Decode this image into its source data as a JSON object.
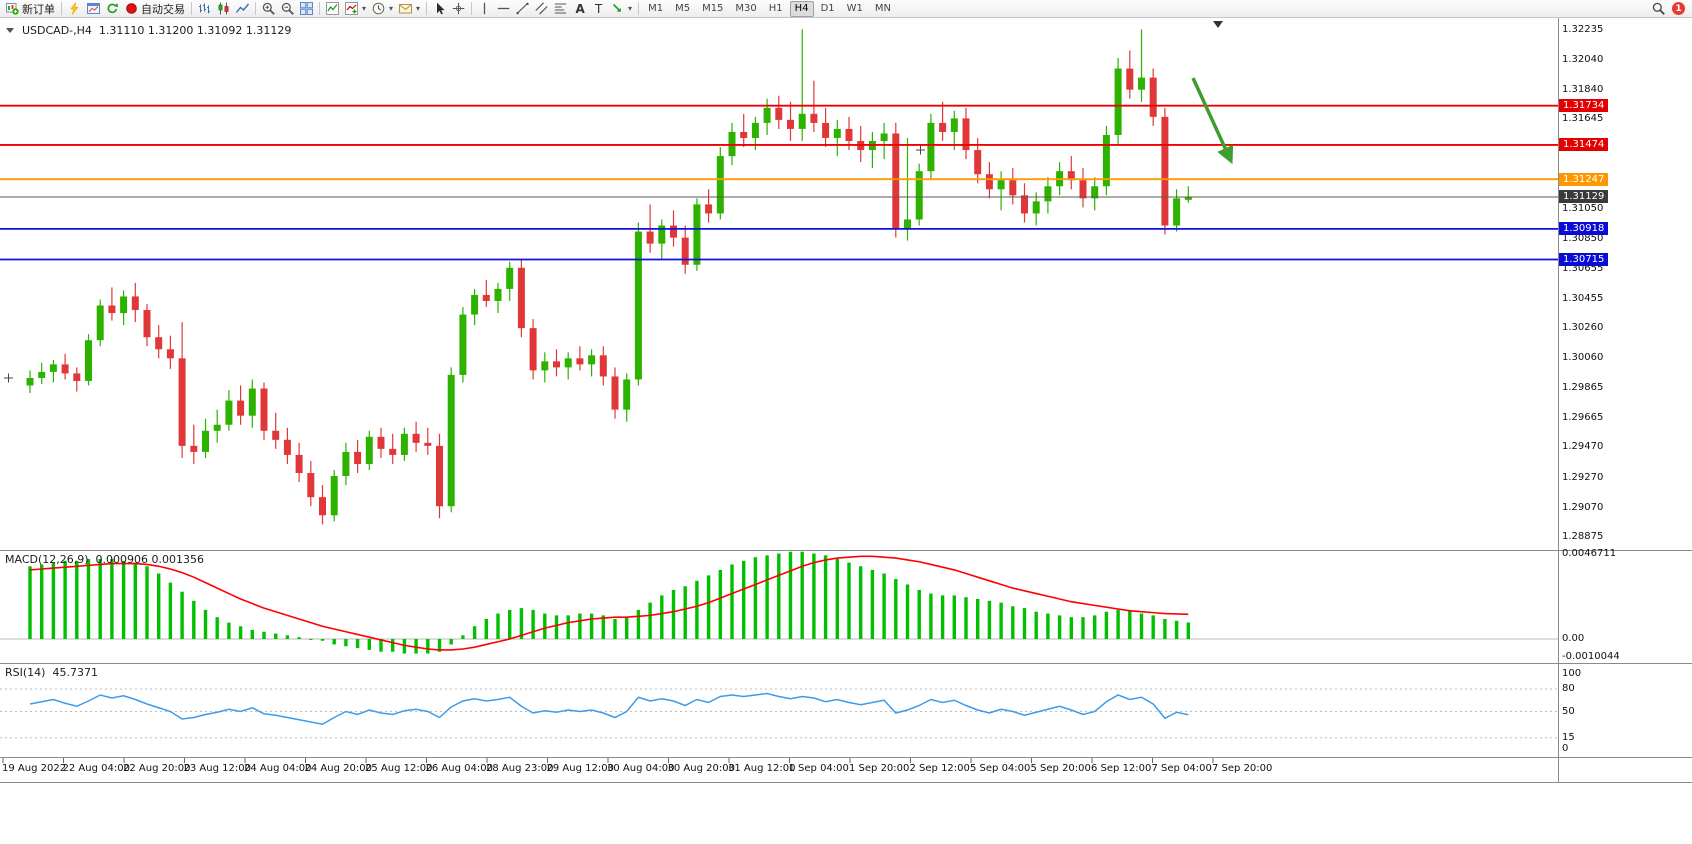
{
  "toolbar": {
    "new_order_label": "新订单",
    "autotrading_label": "自动交易",
    "timeframes": [
      "M1",
      "M5",
      "M15",
      "M30",
      "H1",
      "H4",
      "D1",
      "W1",
      "MN"
    ],
    "active_timeframe": "H4",
    "notification_count": "1",
    "items": [
      {
        "name": "new-order-button",
        "icon": "new-order-icon",
        "label_key": "new_order_label"
      },
      {
        "sep": true
      },
      {
        "name": "quick-chart-button",
        "icon": "lightning-icon"
      },
      {
        "name": "new-chart-button",
        "icon": "chart-window-icon"
      },
      {
        "name": "refresh-button",
        "icon": "refresh-icon"
      },
      {
        "name": "autotrading-button",
        "icon": "autotrading-icon",
        "label_key": "autotrading_label"
      },
      {
        "sep": true
      },
      {
        "name": "bar-chart-button",
        "icon": "bars-chart-icon"
      },
      {
        "name": "candlestick-chart-button",
        "icon": "candles-chart-icon"
      },
      {
        "name": "line-chart-button",
        "icon": "line-chart-icon"
      },
      {
        "sep": true
      },
      {
        "name": "zoom-in-button",
        "icon": "zoom-in-icon"
      },
      {
        "name": "zoom-out-button",
        "icon": "zoom-out-icon"
      },
      {
        "name": "tile-windows-button",
        "icon": "tile-windows-icon"
      },
      {
        "sep": true
      },
      {
        "name": "indicators-button",
        "icon": "indicator-list-icon"
      },
      {
        "name": "add-indicator-button",
        "icon": "indicator-add-icon",
        "dropdown": true
      },
      {
        "name": "periods-button",
        "icon": "clock-icon",
        "dropdown": true
      },
      {
        "name": "templates-button",
        "icon": "mail-icon",
        "dropdown": true
      },
      {
        "sep": true
      },
      {
        "name": "cursor-tool-button",
        "icon": "cursor-icon"
      },
      {
        "name": "crosshair-tool-button",
        "icon": "crosshair-icon"
      },
      {
        "sep": true
      },
      {
        "name": "vertical-line-tool-button",
        "icon": "vline-icon"
      },
      {
        "name": "horizontal-line-tool-button",
        "icon": "hline-icon"
      },
      {
        "name": "trendline-tool-button",
        "icon": "trendline-icon"
      },
      {
        "name": "channel-tool-button",
        "icon": "channel-icon"
      },
      {
        "name": "fibonacci-tool-button",
        "icon": "fibo-icon"
      },
      {
        "name": "text-tool-button",
        "icon": "text-icon"
      },
      {
        "name": "label-tool-button",
        "icon": "label-icon"
      },
      {
        "name": "arrows-tool-button",
        "icon": "arrows-icon",
        "dropdown": true
      },
      {
        "sep": true
      },
      {
        "tf_group": true
      },
      {
        "spacer": true
      },
      {
        "name": "search-button",
        "icon": "search-icon"
      },
      {
        "badge": true
      }
    ]
  },
  "chart": {
    "header": {
      "symbol": "USDCAD-,H4",
      "ohlc": "1.31110 1.31200 1.31092 1.31129"
    },
    "price_axis_labels": [
      "1.32235",
      "1.32040",
      "1.31840",
      "1.31645",
      "1.31445",
      "1.31245",
      "1.31050",
      "1.30850",
      "1.30655",
      "1.30455",
      "1.30260",
      "1.30060",
      "1.29865",
      "1.29665",
      "1.29470",
      "1.29270",
      "1.29070",
      "1.28875"
    ],
    "time_axis_labels": [
      "19 Aug 2022",
      "22 Aug 04:00",
      "22 Aug 20:00",
      "23 Aug 12:00",
      "24 Aug 04:00",
      "24 Aug 20:00",
      "25 Aug 12:00",
      "26 Aug 04:00",
      "28 Aug 23:00",
      "29 Aug 12:00",
      "30 Aug 04:00",
      "30 Aug 20:00",
      "31 Aug 12:00",
      "1 Sep 04:00",
      "1 Sep 20:00",
      "2 Sep 12:00",
      "5 Sep 04:00",
      "5 Sep 20:00",
      "6 Sep 12:00",
      "7 Sep 04:00",
      "7 Sep 20:00"
    ]
  },
  "macd": {
    "label": "MACD(12,26,9)",
    "values": "0.000906 0.001356",
    "axis_labels": [
      "0.0046711",
      "0.00",
      "-0.0010044"
    ]
  },
  "rsi": {
    "label": "RSI(14)",
    "value": "45.7371",
    "axis_labels": [
      "100",
      "80",
      "50",
      "15",
      "0"
    ],
    "levels": [
      80,
      50,
      15
    ]
  },
  "colors": {
    "bull": "#2db200",
    "bear": "#e03838",
    "hline_red": "#f20000",
    "hline_orange": "#ff9b00",
    "hline_blue": "#1010e0",
    "price_line": "#5a5a5a",
    "tag_red": "#e30000",
    "tag_orange": "#ff9800",
    "tag_blue": "#0b0bd6",
    "tag_dark": "#3a3a3a",
    "macd_hist": "#00c000",
    "macd_signal": "#ff0000",
    "rsi_line": "#3d9be9",
    "arrow": "#3f9d2f"
  },
  "chart_data": {
    "type": "candlestick",
    "symbol": "USDCAD",
    "timeframe": "H4",
    "price_range": [
      1.28875,
      1.32235
    ],
    "candles": [
      [
        1.2988,
        1.2998,
        1.2983,
        1.2993
      ],
      [
        1.2993,
        1.3003,
        1.2989,
        1.2997
      ],
      [
        1.2997,
        1.3005,
        1.299,
        1.3002
      ],
      [
        1.3002,
        1.3009,
        1.2992,
        1.2996
      ],
      [
        1.2996,
        1.3,
        1.2984,
        1.2991
      ],
      [
        1.2991,
        1.3022,
        1.2988,
        1.3018
      ],
      [
        1.3018,
        1.3045,
        1.3014,
        1.3041
      ],
      [
        1.3041,
        1.3053,
        1.3031,
        1.3036
      ],
      [
        1.3036,
        1.3051,
        1.3028,
        1.3047
      ],
      [
        1.3047,
        1.3056,
        1.303,
        1.3038
      ],
      [
        1.3038,
        1.3042,
        1.3014,
        1.302
      ],
      [
        1.302,
        1.3028,
        1.3006,
        1.3012
      ],
      [
        1.3012,
        1.3021,
        1.2999,
        1.3006
      ],
      [
        1.3006,
        1.303,
        1.294,
        1.2948
      ],
      [
        1.2948,
        1.2962,
        1.2936,
        1.2944
      ],
      [
        1.2944,
        1.2966,
        1.294,
        1.2958
      ],
      [
        1.2958,
        1.2972,
        1.295,
        1.2962
      ],
      [
        1.2962,
        1.2985,
        1.2958,
        1.2978
      ],
      [
        1.2978,
        1.2988,
        1.2962,
        1.2968
      ],
      [
        1.2968,
        1.2992,
        1.296,
        1.2986
      ],
      [
        1.2986,
        1.299,
        1.2952,
        1.2958
      ],
      [
        1.2958,
        1.297,
        1.2946,
        1.2952
      ],
      [
        1.2952,
        1.296,
        1.2936,
        1.2942
      ],
      [
        1.2942,
        1.295,
        1.2924,
        1.293
      ],
      [
        1.293,
        1.2938,
        1.2908,
        1.2914
      ],
      [
        1.2914,
        1.2922,
        1.2896,
        1.2902
      ],
      [
        1.2902,
        1.2932,
        1.2898,
        1.2928
      ],
      [
        1.2928,
        1.295,
        1.2922,
        1.2944
      ],
      [
        1.2944,
        1.2952,
        1.293,
        1.2936
      ],
      [
        1.2936,
        1.2958,
        1.2932,
        1.2954
      ],
      [
        1.2954,
        1.296,
        1.294,
        1.2946
      ],
      [
        1.2946,
        1.2956,
        1.2936,
        1.2942
      ],
      [
        1.2942,
        1.296,
        1.2938,
        1.2956
      ],
      [
        1.2956,
        1.2964,
        1.2944,
        1.295
      ],
      [
        1.295,
        1.296,
        1.2942,
        1.2948
      ],
      [
        1.2948,
        1.2956,
        1.29,
        1.2908
      ],
      [
        1.2908,
        1.3,
        1.2904,
        1.2995
      ],
      [
        1.2995,
        1.304,
        1.299,
        1.3035
      ],
      [
        1.3035,
        1.3052,
        1.3028,
        1.3048
      ],
      [
        1.3048,
        1.3058,
        1.304,
        1.3044
      ],
      [
        1.3044,
        1.3056,
        1.3036,
        1.3052
      ],
      [
        1.3052,
        1.307,
        1.3044,
        1.3066
      ],
      [
        1.3066,
        1.3072,
        1.302,
        1.3026
      ],
      [
        1.3026,
        1.3032,
        1.2992,
        1.2998
      ],
      [
        1.2998,
        1.301,
        1.299,
        1.3004
      ],
      [
        1.3004,
        1.3012,
        1.2994,
        1.3
      ],
      [
        1.3,
        1.301,
        1.2992,
        1.3006
      ],
      [
        1.3006,
        1.3014,
        1.2998,
        1.3002
      ],
      [
        1.3002,
        1.3012,
        1.2994,
        1.3008
      ],
      [
        1.3008,
        1.3014,
        1.2988,
        1.2994
      ],
      [
        1.2994,
        1.3,
        1.2966,
        1.2972
      ],
      [
        1.2972,
        1.2996,
        1.2964,
        1.2992
      ],
      [
        1.2992,
        1.3096,
        1.2988,
        1.309
      ],
      [
        1.309,
        1.3108,
        1.3076,
        1.3082
      ],
      [
        1.3082,
        1.3098,
        1.3072,
        1.3094
      ],
      [
        1.3094,
        1.3104,
        1.308,
        1.3086
      ],
      [
        1.3086,
        1.3094,
        1.3062,
        1.3068
      ],
      [
        1.3068,
        1.3112,
        1.3064,
        1.3108
      ],
      [
        1.3108,
        1.3118,
        1.3096,
        1.3102
      ],
      [
        1.3102,
        1.3146,
        1.3098,
        1.314
      ],
      [
        1.314,
        1.3162,
        1.3134,
        1.3156
      ],
      [
        1.3156,
        1.3168,
        1.3146,
        1.3152
      ],
      [
        1.3152,
        1.3166,
        1.3144,
        1.3162
      ],
      [
        1.3162,
        1.3178,
        1.3154,
        1.3172
      ],
      [
        1.3172,
        1.318,
        1.3158,
        1.3164
      ],
      [
        1.3164,
        1.3176,
        1.315,
        1.3158
      ],
      [
        1.3158,
        1.3224,
        1.315,
        1.3168
      ],
      [
        1.3168,
        1.319,
        1.3156,
        1.3162
      ],
      [
        1.3162,
        1.3172,
        1.3146,
        1.3152
      ],
      [
        1.3152,
        1.3164,
        1.314,
        1.3158
      ],
      [
        1.3158,
        1.3166,
        1.3144,
        1.315
      ],
      [
        1.315,
        1.316,
        1.3136,
        1.3144
      ],
      [
        1.3144,
        1.3156,
        1.3132,
        1.315
      ],
      [
        1.315,
        1.3162,
        1.3138,
        1.3155
      ],
      [
        1.3155,
        1.3162,
        1.3086,
        1.3092
      ],
      [
        1.3092,
        1.3152,
        1.3084,
        1.3098
      ],
      [
        1.3098,
        1.3135,
        1.3094,
        1.313
      ],
      [
        1.313,
        1.3168,
        1.3124,
        1.3162
      ],
      [
        1.3162,
        1.3176,
        1.315,
        1.3156
      ],
      [
        1.3156,
        1.317,
        1.3144,
        1.3165
      ],
      [
        1.3165,
        1.3172,
        1.3138,
        1.3144
      ],
      [
        1.3144,
        1.3152,
        1.3122,
        1.3128
      ],
      [
        1.3128,
        1.3136,
        1.3112,
        1.3118
      ],
      [
        1.3118,
        1.313,
        1.3104,
        1.3124
      ],
      [
        1.3124,
        1.3132,
        1.3108,
        1.3114
      ],
      [
        1.3114,
        1.3122,
        1.3096,
        1.3102
      ],
      [
        1.3102,
        1.3116,
        1.3094,
        1.311
      ],
      [
        1.311,
        1.3126,
        1.3102,
        1.312
      ],
      [
        1.312,
        1.3136,
        1.3114,
        1.313
      ],
      [
        1.313,
        1.314,
        1.3118,
        1.3124
      ],
      [
        1.3124,
        1.3132,
        1.3106,
        1.3112
      ],
      [
        1.3112,
        1.3126,
        1.3104,
        1.312
      ],
      [
        1.312,
        1.316,
        1.3114,
        1.3154
      ],
      [
        1.3154,
        1.3205,
        1.3148,
        1.3198
      ],
      [
        1.3198,
        1.321,
        1.3178,
        1.3184
      ],
      [
        1.3184,
        1.3224,
        1.3176,
        1.3192
      ],
      [
        1.3192,
        1.3198,
        1.316,
        1.3166
      ],
      [
        1.3166,
        1.3172,
        1.3088,
        1.3094
      ],
      [
        1.3094,
        1.3118,
        1.309,
        1.3112
      ],
      [
        1.3111,
        1.312,
        1.31092,
        1.31129
      ]
    ],
    "hlines": [
      {
        "price": 1.31734,
        "color": "red",
        "label": "1.31734"
      },
      {
        "price": 1.31474,
        "color": "red",
        "label": "1.31474"
      },
      {
        "price": 1.31247,
        "color": "orange",
        "label": "1.31247"
      },
      {
        "price": 1.31129,
        "color": "dark",
        "label": "1.31129",
        "current": true
      },
      {
        "price": 1.30918,
        "color": "blue",
        "label": "1.30918"
      },
      {
        "price": 1.30715,
        "color": "blue",
        "label": "1.30715"
      }
    ],
    "macd": {
      "params": "12,26,9",
      "current_values": [
        0.000906,
        0.001356
      ],
      "histogram_x1e4": [
        40,
        41,
        42,
        43,
        43,
        44,
        44,
        44,
        43,
        42,
        40,
        36,
        31,
        26,
        21,
        16,
        12,
        9,
        7,
        5,
        4,
        3,
        2,
        1,
        0,
        -1,
        -3,
        -4,
        -5,
        -6,
        -7,
        -7,
        -8,
        -8,
        -8,
        -7,
        -3,
        2,
        7,
        11,
        14,
        16,
        17,
        16,
        14,
        13,
        13,
        14,
        14,
        13,
        11,
        12,
        16,
        20,
        24,
        27,
        29,
        32,
        35,
        38,
        41,
        43,
        45,
        46,
        47,
        48,
        48,
        47,
        46,
        44,
        42,
        40,
        38,
        36,
        33,
        30,
        27,
        25,
        24,
        24,
        23,
        22,
        21,
        20,
        18,
        17,
        15,
        14,
        13,
        12,
        12,
        13,
        15,
        16,
        16,
        14,
        13,
        11,
        10,
        9.06
      ],
      "signal_x1e4": [
        38,
        38.5,
        39,
        39.5,
        40,
        40.5,
        41,
        41.5,
        41.5,
        41.5,
        41,
        40,
        38.5,
        36.5,
        34,
        31,
        28,
        25,
        22,
        19.5,
        17,
        15,
        13,
        11,
        9,
        7,
        5.5,
        4,
        2.5,
        1,
        -0.5,
        -2,
        -3.5,
        -4.5,
        -5.5,
        -6,
        -6,
        -5.5,
        -4.5,
        -3,
        -1.5,
        0,
        2,
        4,
        6,
        7.5,
        9,
        10,
        11,
        11.5,
        12,
        12,
        12.5,
        13,
        14,
        15,
        16.5,
        18,
        20,
        22.5,
        25,
        27.5,
        30,
        32.5,
        35,
        37.5,
        40,
        42,
        43.5,
        44.5,
        45,
        45.5,
        45.5,
        45,
        44.5,
        43.5,
        42.5,
        41,
        39.5,
        38,
        36,
        34,
        32,
        30,
        28,
        26.5,
        25,
        23.5,
        22,
        20.5,
        19.5,
        18.5,
        17.5,
        16.5,
        15.5,
        15,
        14.5,
        14,
        13.8,
        13.56
      ]
    },
    "rsi": {
      "period": 14,
      "current_value": 45.7371,
      "values": [
        60,
        63,
        66,
        61,
        57,
        64,
        72,
        68,
        71,
        66,
        60,
        55,
        50,
        40,
        42,
        46,
        49,
        53,
        50,
        55,
        47,
        45,
        42,
        39,
        36,
        33,
        42,
        50,
        46,
        52,
        48,
        46,
        51,
        53,
        50,
        42,
        56,
        64,
        67,
        64,
        66,
        69,
        57,
        48,
        51,
        49,
        52,
        50,
        52,
        48,
        42,
        50,
        69,
        64,
        67,
        64,
        58,
        66,
        62,
        70,
        72,
        70,
        72,
        74,
        70,
        67,
        70,
        68,
        63,
        66,
        62,
        59,
        62,
        65,
        48,
        52,
        58,
        66,
        62,
        65,
        58,
        52,
        48,
        53,
        50,
        45,
        49,
        53,
        57,
        52,
        46,
        50,
        63,
        72,
        66,
        69,
        60,
        41,
        49,
        45.74
      ]
    }
  }
}
